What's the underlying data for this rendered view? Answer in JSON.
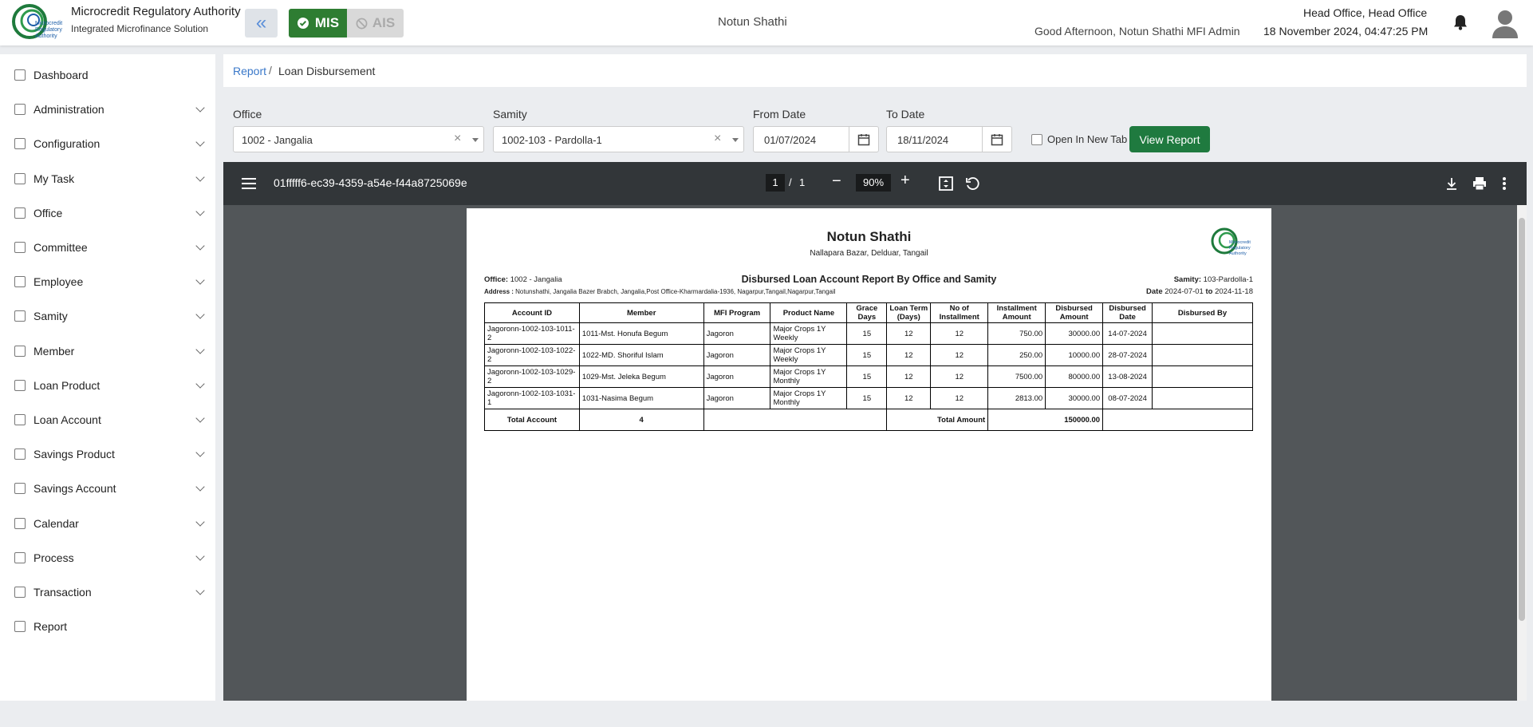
{
  "header": {
    "org_title": "Microcredit Regulatory Authority",
    "org_subtitle": "Integrated Microfinance Solution",
    "logo_text": "Microcredit Regulatory Authority",
    "mis_label": "MIS",
    "ais_label": "AIS",
    "center_title": "Notun Shathi",
    "greeting": "Good Afternoon, Notun Shathi MFI Admin",
    "office": "Head Office, Head Office",
    "datetime": "18 November 2024, 04:47:25 PM",
    "accent": "#2e7d32"
  },
  "sidebar": {
    "items": [
      {
        "label": "Dashboard",
        "icon": "dashboard-icon",
        "chevron": false
      },
      {
        "label": "Administration",
        "icon": "admin-icon",
        "chevron": true
      },
      {
        "label": "Configuration",
        "icon": "config-icon",
        "chevron": true
      },
      {
        "label": "My Task",
        "icon": "task-icon",
        "chevron": true
      },
      {
        "label": "Office",
        "icon": "office-icon",
        "chevron": true
      },
      {
        "label": "Committee",
        "icon": "committee-icon",
        "chevron": true
      },
      {
        "label": "Employee",
        "icon": "employee-icon",
        "chevron": true
      },
      {
        "label": "Samity",
        "icon": "samity-icon",
        "chevron": true
      },
      {
        "label": "Member",
        "icon": "member-icon",
        "chevron": true
      },
      {
        "label": "Loan Product",
        "icon": "loan-product-icon",
        "chevron": true
      },
      {
        "label": "Loan Account",
        "icon": "loan-account-icon",
        "chevron": true
      },
      {
        "label": "Savings Product",
        "icon": "savings-product-icon",
        "chevron": true
      },
      {
        "label": "Savings Account",
        "icon": "savings-account-icon",
        "chevron": true
      },
      {
        "label": "Calendar",
        "icon": "calendar-icon",
        "chevron": true
      },
      {
        "label": "Process",
        "icon": "process-icon",
        "chevron": true
      },
      {
        "label": "Transaction",
        "icon": "transaction-icon",
        "chevron": true
      },
      {
        "label": "Report",
        "icon": "report-icon",
        "chevron": false
      }
    ]
  },
  "breadcrumb": {
    "parent": "Report",
    "sep": "/",
    "current": "Loan Disbursement"
  },
  "filters": {
    "office_label": "Office",
    "office_value": "1002 - Jangalia",
    "samity_label": "Samity",
    "samity_value": "1002-103 - Pardolla-1",
    "from_label": "From Date",
    "from_value": "01/07/2024",
    "to_label": "To Date",
    "to_value": "18/11/2024",
    "new_tab_label": "Open In New Tab",
    "view_button": "View Report"
  },
  "pdf": {
    "filename": "01fffff6-ec39-4359-a54e-f44a8725069e",
    "page_current": "1",
    "page_sep": "/",
    "page_total": "1",
    "zoom": "90%"
  },
  "report": {
    "title": "Notun Shathi",
    "address_line": "Nallapara Bazar, Delduar, Tangail",
    "logo_text": "Microcredit Regulatory Authority",
    "heading": "Disbursed Loan Account Report By Office and Samity",
    "office_label": "Office:",
    "office_value": "1002 - Jangalia",
    "samity_label": "Samity:",
    "samity_value": "103-Pardolla-1",
    "address_label": "Address :",
    "address_value": "Notunshathi, Jangalia Bazer Brabch, Jangalia,Post Office-Kharmardalia-1936, Nagarpur,Tangail,Nagarpur,Tangail",
    "date_label": "Date",
    "date_from": "2024-07-01",
    "date_to_word": "to",
    "date_to": "2024-11-18",
    "columns": [
      "Account ID",
      "Member",
      "MFI Program",
      "Product Name",
      "Grace Days",
      "Loan Term (Days)",
      "No of Installment",
      "Installment Amount",
      "Disbursed Amount",
      "Disbursed Date",
      "Disbursed By"
    ],
    "rows": [
      [
        "Jagoronn-1002-103-1011-2",
        "1011-Mst. Honufa Begum",
        "Jagoron",
        "Major Crops 1Y Weekly",
        "15",
        "12",
        "12",
        "750.00",
        "30000.00",
        "14-07-2024",
        ""
      ],
      [
        "Jagoronn-1002-103-1022-2",
        "1022-MD. Shoriful Islam",
        "Jagoron",
        "Major Crops 1Y Weekly",
        "15",
        "12",
        "12",
        "250.00",
        "10000.00",
        "28-07-2024",
        ""
      ],
      [
        "Jagoronn-1002-103-1029-2",
        "1029-Mst. Jeleka Begum",
        "Jagoron",
        "Major Crops 1Y Monthly",
        "15",
        "12",
        "12",
        "7500.00",
        "80000.00",
        "13-08-2024",
        ""
      ],
      [
        "Jagoronn-1002-103-1031-1",
        "1031-Nasima Begum",
        "Jagoron",
        "Major Crops 1Y Monthly",
        "15",
        "12",
        "12",
        "2813.00",
        "30000.00",
        "08-07-2024",
        ""
      ]
    ],
    "total_account_label": "Total Account",
    "total_account_value": "4",
    "total_amount_label": "Total Amount",
    "total_amount_value": "150000.00"
  }
}
